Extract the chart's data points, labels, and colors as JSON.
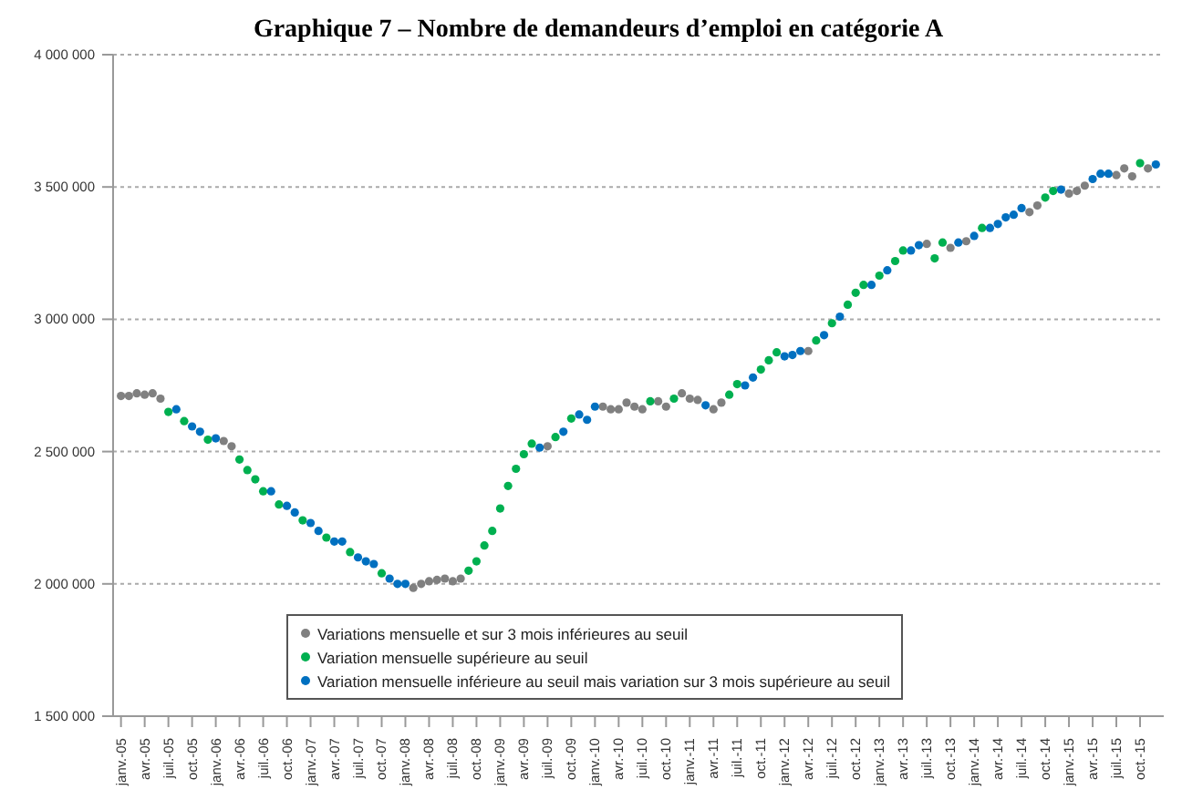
{
  "chart_data": {
    "type": "scatter",
    "title": "Graphique 7 – Nombre de demandeurs d’emploi en catégorie A",
    "categories": [
      "janv.-05",
      null,
      null,
      "avr.-05",
      null,
      null,
      "juil.-05",
      null,
      null,
      "oct.-05",
      null,
      null,
      "janv.-06",
      null,
      null,
      "avr.-06",
      null,
      null,
      "juil.-06",
      null,
      null,
      "oct.-06",
      null,
      null,
      "janv.-07",
      null,
      null,
      "avr.-07",
      null,
      null,
      "juil.-07",
      null,
      null,
      "oct.-07",
      null,
      null,
      "janv.-08",
      null,
      null,
      "avr.-08",
      null,
      null,
      "juil.-08",
      null,
      null,
      "oct.-08",
      null,
      null,
      "janv.-09",
      null,
      null,
      "avr.-09",
      null,
      null,
      "juil.-09",
      null,
      null,
      "oct.-09",
      null,
      null,
      "janv.-10",
      null,
      null,
      "avr.-10",
      null,
      null,
      "juil.-10",
      null,
      null,
      "oct.-10",
      null,
      null,
      "janv.-11",
      null,
      null,
      "avr.-11",
      null,
      null,
      "juil.-11",
      null,
      null,
      "oct.-11",
      null,
      null,
      "janv.-12",
      null,
      null,
      "avr.-12",
      null,
      null,
      "juil.-12",
      null,
      null,
      "oct.-12",
      null,
      null,
      "janv.-13",
      null,
      null,
      "avr.-13",
      null,
      null,
      "juil.-13",
      null,
      null,
      "oct.-13",
      null,
      null,
      "janv.-14",
      null,
      null,
      "avr.-14",
      null,
      null,
      "juil.-14",
      null,
      null,
      "oct.-14",
      null,
      null,
      "janv.-15",
      null,
      null,
      "avr.-15",
      null,
      null,
      "juil.-15",
      null,
      null,
      "oct.-15",
      null,
      null
    ],
    "series": [
      {
        "name": "Variations mensuelle et sur 3 mois inférieures au seuil",
        "color": "#808080",
        "values": [
          2710000,
          2710000,
          2720000,
          2715000,
          2720000,
          2700000,
          null,
          null,
          null,
          null,
          null,
          null,
          null,
          2540000,
          2520000,
          null,
          null,
          null,
          null,
          null,
          null,
          null,
          null,
          null,
          null,
          null,
          null,
          null,
          null,
          null,
          null,
          null,
          null,
          null,
          null,
          null,
          null,
          1985000,
          2000000,
          2010000,
          2015000,
          2020000,
          2010000,
          2020000,
          null,
          null,
          null,
          null,
          null,
          null,
          null,
          null,
          null,
          null,
          2520000,
          null,
          null,
          null,
          null,
          null,
          null,
          2670000,
          2660000,
          2660000,
          2685000,
          2670000,
          2660000,
          null,
          2690000,
          2670000,
          null,
          2720000,
          2700000,
          2695000,
          null,
          2660000,
          2685000,
          null,
          null,
          null,
          null,
          null,
          null,
          null,
          null,
          null,
          null,
          2880000,
          null,
          null,
          null,
          null,
          null,
          null,
          null,
          null,
          null,
          null,
          null,
          null,
          null,
          null,
          3285000,
          null,
          null,
          3270000,
          null,
          3295000,
          null,
          null,
          null,
          null,
          null,
          null,
          null,
          3405000,
          3430000,
          null,
          null,
          null,
          3475000,
          3485000,
          3505000,
          null,
          null,
          null,
          3545000,
          3570000,
          3540000,
          null,
          3570000,
          null
        ]
      },
      {
        "name": "Variation mensuelle supérieure au seuil",
        "color": "#00b050",
        "values": [
          null,
          null,
          null,
          null,
          null,
          null,
          2650000,
          null,
          2615000,
          null,
          null,
          2545000,
          null,
          null,
          null,
          2470000,
          2430000,
          2395000,
          2350000,
          null,
          2300000,
          null,
          null,
          2240000,
          null,
          null,
          2175000,
          null,
          null,
          2120000,
          null,
          null,
          null,
          2040000,
          null,
          null,
          null,
          null,
          null,
          null,
          null,
          null,
          null,
          null,
          2050000,
          2085000,
          2145000,
          2200000,
          2285000,
          2370000,
          2435000,
          2490000,
          2530000,
          null,
          null,
          2555000,
          null,
          2625000,
          null,
          null,
          null,
          null,
          null,
          null,
          null,
          null,
          null,
          2690000,
          null,
          null,
          2700000,
          null,
          null,
          null,
          null,
          null,
          null,
          2715000,
          2755000,
          null,
          null,
          2810000,
          2845000,
          2875000,
          null,
          null,
          null,
          null,
          2920000,
          null,
          2985000,
          null,
          3055000,
          3100000,
          3130000,
          null,
          3165000,
          null,
          3220000,
          3260000,
          null,
          null,
          null,
          3230000,
          3290000,
          null,
          null,
          null,
          null,
          3345000,
          null,
          null,
          null,
          null,
          null,
          null,
          null,
          3460000,
          3485000,
          null,
          null,
          null,
          null,
          null,
          null,
          null,
          null,
          null,
          null,
          3590000,
          null,
          null
        ]
      },
      {
        "name": "Variation mensuelle inférieure au seuil mais variation sur 3 mois supérieure au seuil",
        "color": "#0070c0",
        "values": [
          null,
          null,
          null,
          null,
          null,
          null,
          null,
          2660000,
          null,
          2595000,
          2575000,
          null,
          2550000,
          null,
          null,
          null,
          null,
          null,
          null,
          2350000,
          null,
          2295000,
          2270000,
          null,
          2230000,
          2200000,
          null,
          2160000,
          2160000,
          null,
          2100000,
          2085000,
          2075000,
          null,
          2020000,
          2000000,
          2000000,
          null,
          null,
          null,
          null,
          null,
          null,
          null,
          null,
          null,
          null,
          null,
          null,
          null,
          null,
          null,
          null,
          2515000,
          null,
          null,
          2575000,
          null,
          2640000,
          2620000,
          2670000,
          null,
          null,
          null,
          null,
          null,
          null,
          null,
          null,
          null,
          null,
          null,
          null,
          null,
          2675000,
          null,
          null,
          null,
          null,
          2750000,
          2780000,
          null,
          null,
          null,
          2860000,
          2865000,
          2880000,
          null,
          null,
          2940000,
          null,
          3010000,
          null,
          null,
          null,
          3130000,
          null,
          3185000,
          null,
          null,
          3260000,
          3280000,
          null,
          null,
          null,
          null,
          3290000,
          null,
          3315000,
          null,
          3345000,
          3360000,
          3385000,
          3395000,
          3420000,
          null,
          null,
          null,
          null,
          3490000,
          null,
          null,
          null,
          3530000,
          3550000,
          3550000,
          null,
          null,
          null,
          null,
          null,
          3585000
        ]
      }
    ],
    "ylim": [
      1500000,
      4000000
    ],
    "yticks": [
      {
        "value": 1500000,
        "label": "1 500 000"
      },
      {
        "value": 2000000,
        "label": "2 000 000"
      },
      {
        "value": 2500000,
        "label": "2 500 000"
      },
      {
        "value": 3000000,
        "label": "3 000 000"
      },
      {
        "value": 3500000,
        "label": "3 500 000"
      },
      {
        "value": 4000000,
        "label": "4 000 000"
      }
    ],
    "grid": "y",
    "legend": "bottom",
    "marker": "circle"
  }
}
